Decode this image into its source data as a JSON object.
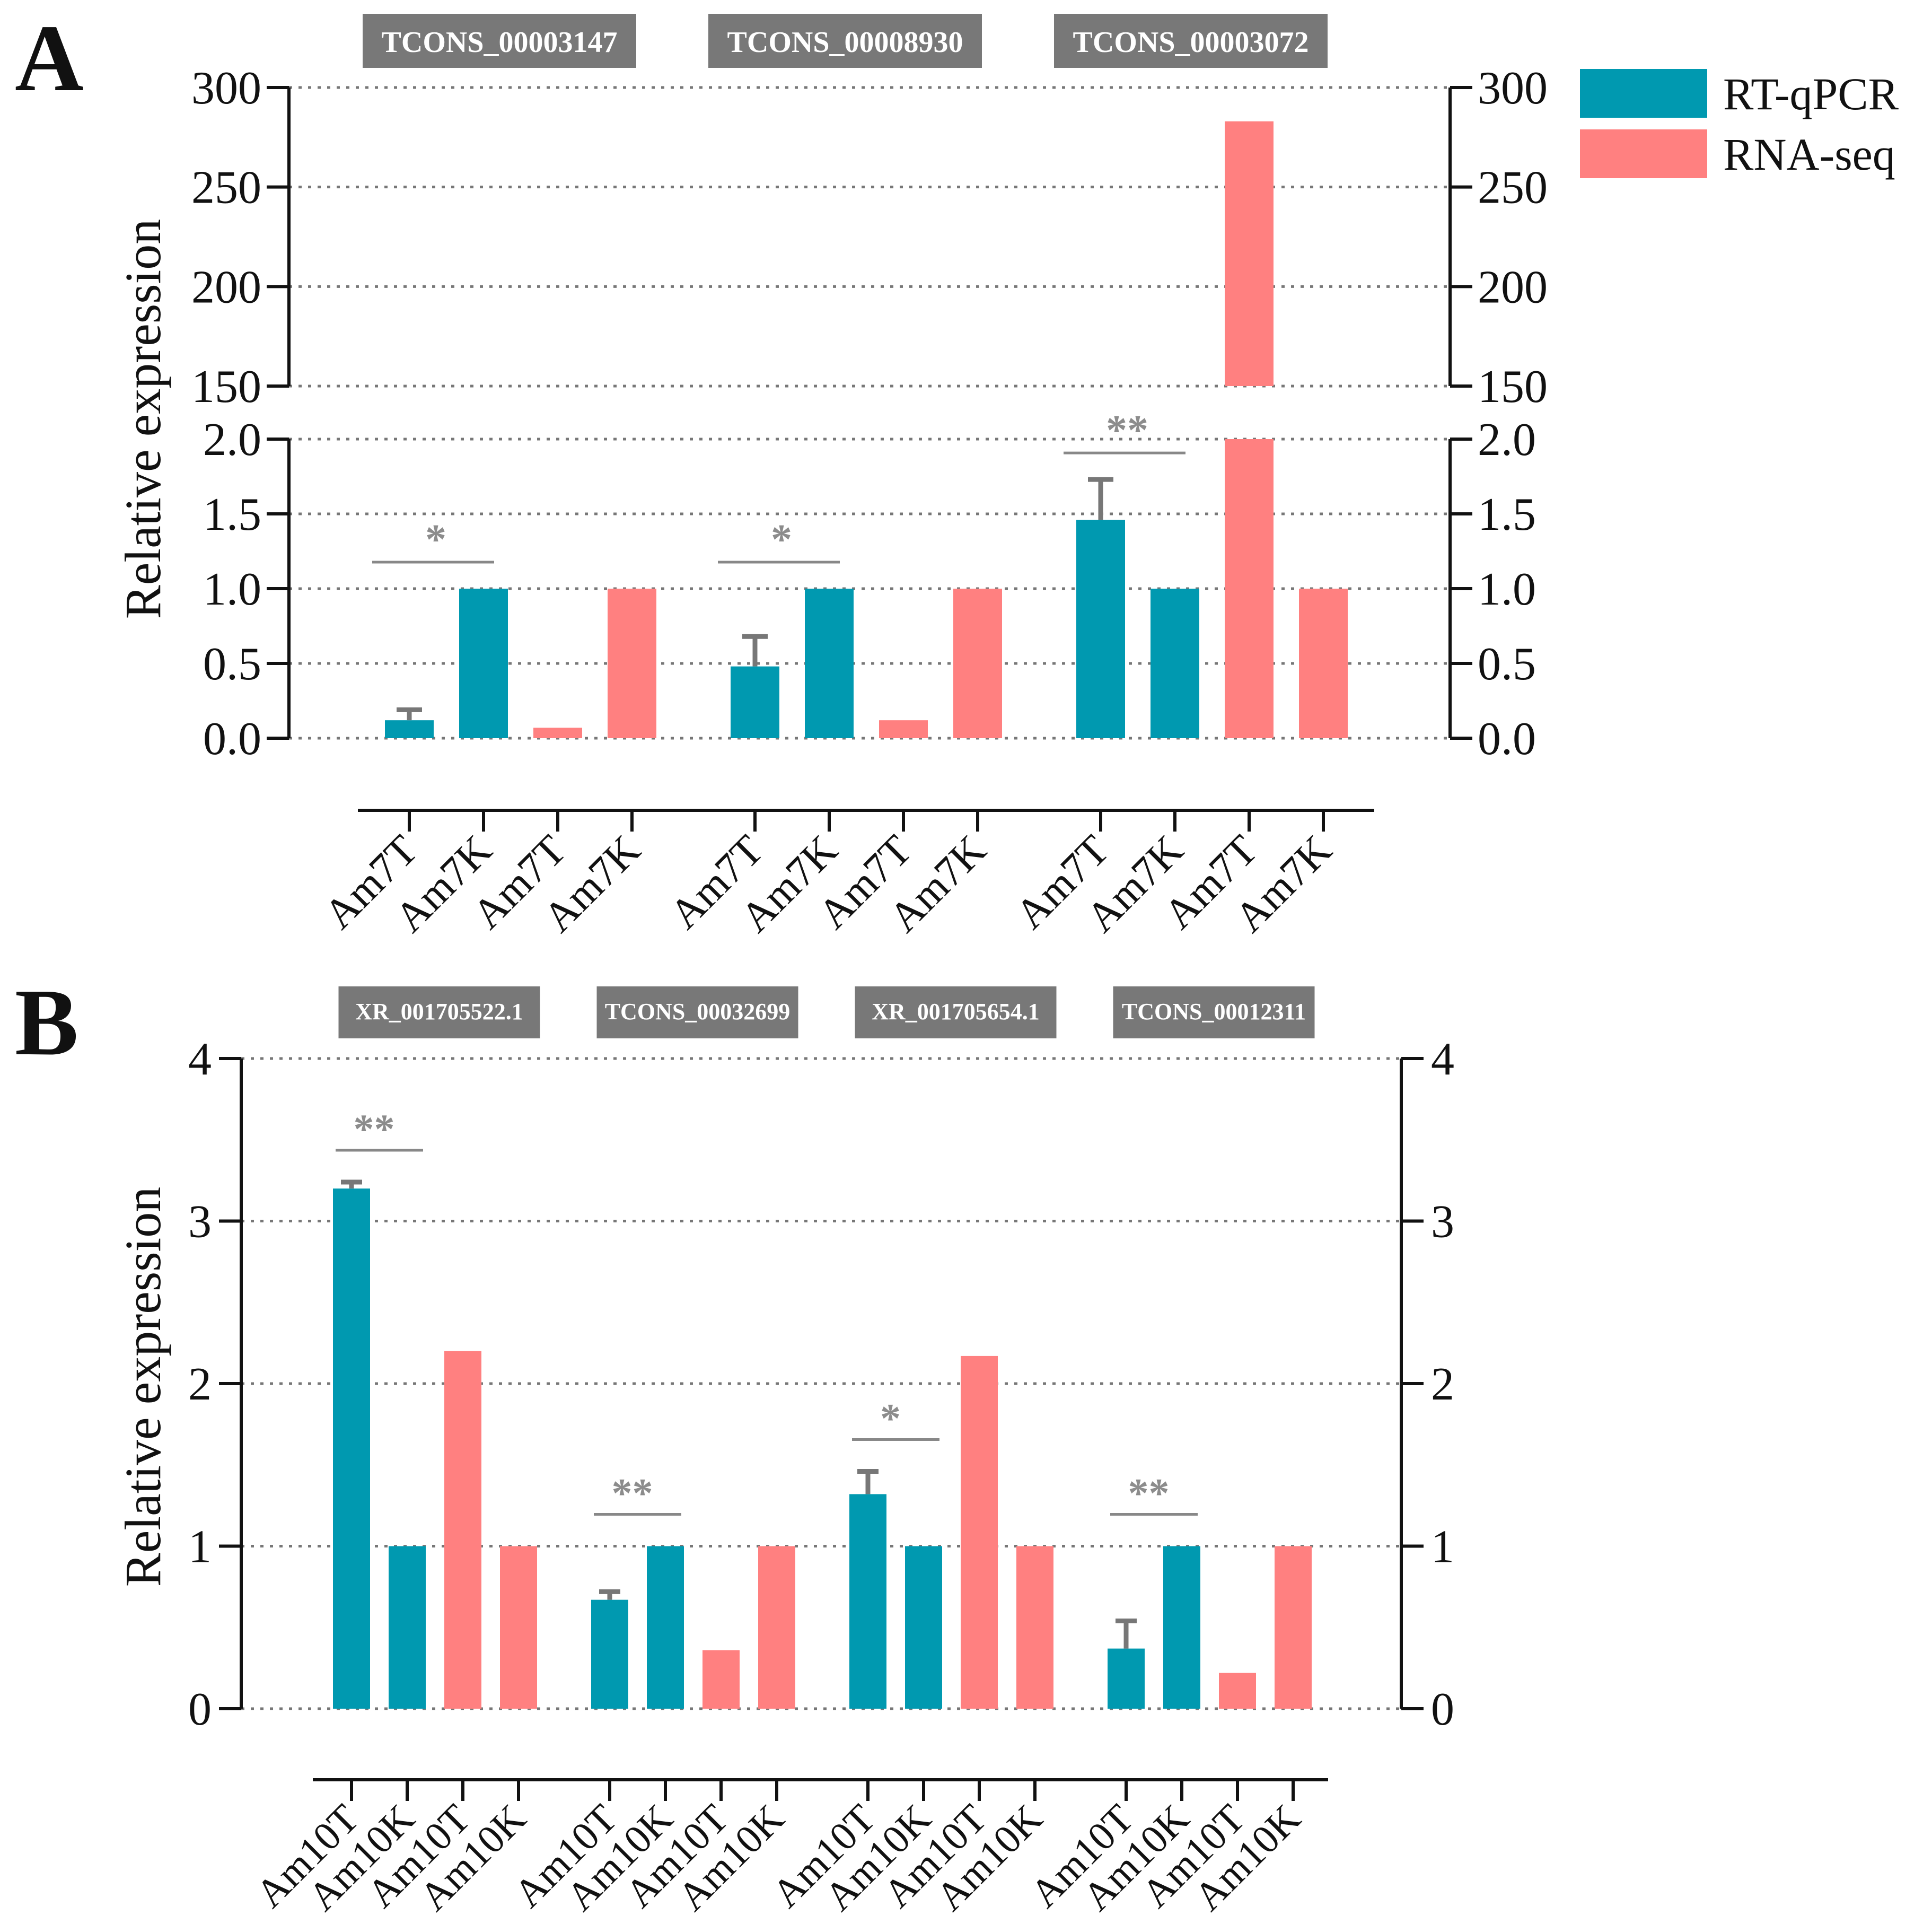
{
  "colors": {
    "qpcr": "#0099B0",
    "rnaseq": "#FF8080",
    "annotation": "#8C8C8C",
    "gene_box": "#787878",
    "axis": "#111111"
  },
  "legend": {
    "qpcr_label": "RT-qPCR",
    "rnaseq_label": "RNA-seq"
  },
  "chart_data": [
    {
      "panel": "A",
      "type": "bar",
      "ylabel": "Relative expression",
      "axis_break": {
        "lower": [
          0,
          2.0
        ],
        "upper": [
          150,
          300
        ]
      },
      "lower_ticks": [
        "0.0",
        "0.5",
        "1.0",
        "1.5",
        "2.0"
      ],
      "upper_ticks": [
        "150",
        "200",
        "250",
        "300"
      ],
      "groups": [
        {
          "gene": "TCONS_00003147",
          "significance": "*",
          "bars": [
            {
              "label": "Am7T",
              "series": "RT-qPCR",
              "value": 0.12,
              "error": 0.07
            },
            {
              "label": "Am7K",
              "series": "RT-qPCR",
              "value": 1.0
            },
            {
              "label": "Am7T",
              "series": "RNA-seq",
              "value": 0.07
            },
            {
              "label": "Am7K",
              "series": "RNA-seq",
              "value": 1.0
            }
          ]
        },
        {
          "gene": "TCONS_00008930",
          "significance": "*",
          "bars": [
            {
              "label": "Am7T",
              "series": "RT-qPCR",
              "value": 0.48,
              "error": 0.2
            },
            {
              "label": "Am7K",
              "series": "RT-qPCR",
              "value": 1.0
            },
            {
              "label": "Am7T",
              "series": "RNA-seq",
              "value": 0.12
            },
            {
              "label": "Am7K",
              "series": "RNA-seq",
              "value": 1.0
            }
          ]
        },
        {
          "gene": "TCONS_00003072",
          "significance": "**",
          "bars": [
            {
              "label": "Am7T",
              "series": "RT-qPCR",
              "value": 1.46,
              "error": 0.27
            },
            {
              "label": "Am7K",
              "series": "RT-qPCR",
              "value": 1.0
            },
            {
              "label": "Am7T",
              "series": "RNA-seq",
              "value": 283
            },
            {
              "label": "Am7K",
              "series": "RNA-seq",
              "value": 1.0
            }
          ]
        }
      ]
    },
    {
      "panel": "B",
      "type": "bar",
      "ylabel": "Relative expression",
      "ylim": [
        0,
        4
      ],
      "ticks": [
        "0",
        "1",
        "2",
        "3",
        "4"
      ],
      "groups": [
        {
          "gene": "XR_001705522.1",
          "significance": "**",
          "bars": [
            {
              "label": "Am10T",
              "series": "RT-qPCR",
              "value": 3.2,
              "error": 0.04
            },
            {
              "label": "Am10K",
              "series": "RT-qPCR",
              "value": 1.0
            },
            {
              "label": "Am10T",
              "series": "RNA-seq",
              "value": 2.2
            },
            {
              "label": "Am10K",
              "series": "RNA-seq",
              "value": 1.0
            }
          ]
        },
        {
          "gene": "TCONS_00032699",
          "significance": "**",
          "bars": [
            {
              "label": "Am10T",
              "series": "RT-qPCR",
              "value": 0.67,
              "error": 0.05
            },
            {
              "label": "Am10K",
              "series": "RT-qPCR",
              "value": 1.0
            },
            {
              "label": "Am10T",
              "series": "RNA-seq",
              "value": 0.36
            },
            {
              "label": "Am10K",
              "series": "RNA-seq",
              "value": 1.0
            }
          ]
        },
        {
          "gene": "XR_001705654.1",
          "significance": "*",
          "bars": [
            {
              "label": "Am10T",
              "series": "RT-qPCR",
              "value": 1.32,
              "error": 0.14
            },
            {
              "label": "Am10K",
              "series": "RT-qPCR",
              "value": 1.0
            },
            {
              "label": "Am10T",
              "series": "RNA-seq",
              "value": 2.17
            },
            {
              "label": "Am10K",
              "series": "RNA-seq",
              "value": 1.0
            }
          ]
        },
        {
          "gene": "TCONS_00012311",
          "significance": "**",
          "bars": [
            {
              "label": "Am10T",
              "series": "RT-qPCR",
              "value": 0.37,
              "error": 0.17
            },
            {
              "label": "Am10K",
              "series": "RT-qPCR",
              "value": 1.0
            },
            {
              "label": "Am10T",
              "series": "RNA-seq",
              "value": 0.22
            },
            {
              "label": "Am10K",
              "series": "RNA-seq",
              "value": 1.0
            }
          ]
        }
      ]
    }
  ]
}
